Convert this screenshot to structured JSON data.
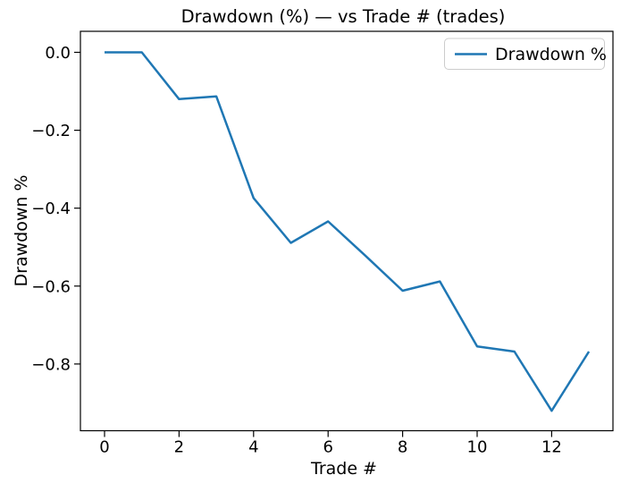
{
  "figure": {
    "background": "#ffffff",
    "axis_color": "#000000"
  },
  "chart_data": {
    "type": "line",
    "title": "Drawdown (%) — vs Trade # (trades)",
    "xlabel": "Trade #",
    "ylabel": "Drawdown %",
    "grid": false,
    "legend": {
      "position": "upper right",
      "entries": [
        "Drawdown %"
      ]
    },
    "series": [
      {
        "name": "Drawdown %",
        "color": "#1f77b4",
        "x": [
          0,
          1,
          2,
          3,
          4,
          5,
          6,
          7,
          8,
          9,
          10,
          11,
          12,
          13
        ],
        "y": [
          0.0,
          0.0,
          -0.12,
          -0.113,
          -0.374,
          -0.489,
          -0.434,
          -0.522,
          -0.612,
          -0.588,
          -0.755,
          -0.768,
          -0.92,
          -0.768
        ]
      }
    ],
    "x_ticks": {
      "values": [
        0,
        2,
        4,
        6,
        8,
        10,
        12
      ],
      "labels": [
        "0",
        "2",
        "4",
        "6",
        "8",
        "10",
        "12"
      ]
    },
    "y_ticks": {
      "values": [
        0,
        -0.2,
        -0.4,
        -0.6,
        -0.8
      ],
      "labels": [
        "0.0",
        "−0.2",
        "−0.4",
        "−0.6",
        "−0.8"
      ]
    },
    "xlim": [
      -0.65,
      13.65
    ],
    "ylim": [
      -0.972,
      0.054
    ]
  }
}
